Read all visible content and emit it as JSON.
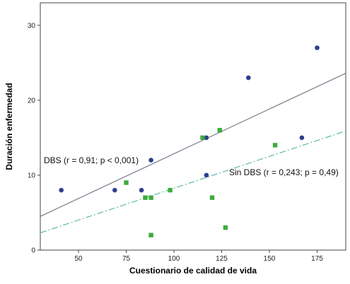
{
  "chart_data": {
    "type": "scatter",
    "xlabel": "Cuestionario de calidad de vida",
    "ylabel": "Duración enfermedad",
    "xlim": [
      30,
      190
    ],
    "ylim": [
      0,
      33
    ],
    "xticks": [
      50,
      75,
      100,
      125,
      150,
      175
    ],
    "yticks": [
      0,
      10,
      20,
      30
    ],
    "grid": false,
    "series": [
      {
        "marker": "circle",
        "color": "#2f3d8f",
        "points": [
          {
            "x": 41,
            "y": 8
          },
          {
            "x": 69,
            "y": 8
          },
          {
            "x": 83,
            "y": 8
          },
          {
            "x": 88,
            "y": 12
          },
          {
            "x": 117,
            "y": 15
          },
          {
            "x": 117,
            "y": 10
          },
          {
            "x": 139,
            "y": 23
          },
          {
            "x": 167,
            "y": 15
          },
          {
            "x": 175,
            "y": 27
          }
        ],
        "fit_line": {
          "x1": 30,
          "y1": 4.5,
          "x2": 190,
          "y2": 23.6,
          "color": "#7a7a8c",
          "dash": "solid"
        },
        "annotation": "DBS (r = 0,91; p < 0,001)"
      },
      {
        "marker": "square",
        "color": "#3dac3d",
        "points": [
          {
            "x": 75,
            "y": 9
          },
          {
            "x": 85,
            "y": 7
          },
          {
            "x": 88,
            "y": 7
          },
          {
            "x": 88,
            "y": 2
          },
          {
            "x": 98,
            "y": 8
          },
          {
            "x": 115,
            "y": 15
          },
          {
            "x": 120,
            "y": 7
          },
          {
            "x": 124,
            "y": 16
          },
          {
            "x": 127,
            "y": 3
          },
          {
            "x": 153,
            "y": 14
          }
        ],
        "fit_line": {
          "x1": 30,
          "y1": 2.3,
          "x2": 190,
          "y2": 15.9,
          "color": "#5fb8a6",
          "dash": "dashdot"
        },
        "annotation": "Sin DBS (r = 0,243; p = 0,49)"
      }
    ]
  }
}
